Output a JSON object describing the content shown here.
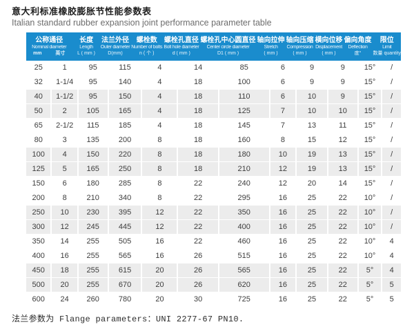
{
  "page": {
    "title_cn": "意大利标准橡胶膨胀节性能参数表",
    "title_en": "Italian standard rubber expansion joint performance parameter table",
    "footer": "法兰参数为 Flange parameters：UNI 2277-67 PN10."
  },
  "colors": {
    "header_bg": "#1a8ccd",
    "header_text": "#ffffff",
    "row_alt_bg": "#ececec",
    "body_text": "#3c3c3c"
  },
  "table": {
    "columns": [
      {
        "cn": "公称通径",
        "en": "Nominal diameter",
        "span": 2,
        "sub_parts": [
          "mm",
          "英寸"
        ]
      },
      {
        "cn": "长度",
        "en": "Length",
        "sub": "L ( mm )"
      },
      {
        "cn": "法兰外径",
        "en": "Outer diameter",
        "sub": "D(mm)"
      },
      {
        "cn": "螺栓数",
        "en": "Number of bolts",
        "sub": "n ( 个 )"
      },
      {
        "cn": "螺栓孔直径",
        "en": "Bolt hole diameter",
        "sub": "d ( mm )"
      },
      {
        "cn": "螺栓孔中心圆直径",
        "en": "Center circle diameter",
        "sub": "D1 ( mm )"
      },
      {
        "cn": "轴向拉伸",
        "en": "Stretch",
        "sub": "( mm )"
      },
      {
        "cn": "轴向压缩",
        "en": "Compression",
        "sub": "( mm )"
      },
      {
        "cn": "横向位移",
        "en": "Displacement",
        "sub": "( mm )"
      },
      {
        "cn": "偏向角度",
        "en": "Deflection",
        "sub": "度°"
      },
      {
        "cn": "限位",
        "en": "Limit",
        "sub": "数量 quantity"
      }
    ],
    "rows": [
      [
        "25",
        "1",
        "95",
        "115",
        "4",
        "14",
        "85",
        "6",
        "9",
        "9",
        "15°",
        "/"
      ],
      [
        "32",
        "1-1/4",
        "95",
        "140",
        "4",
        "18",
        "100",
        "6",
        "9",
        "9",
        "15°",
        "/"
      ],
      [
        "40",
        "1-1/2",
        "95",
        "150",
        "4",
        "18",
        "110",
        "6",
        "10",
        "9",
        "15°",
        "/"
      ],
      [
        "50",
        "2",
        "105",
        "165",
        "4",
        "18",
        "125",
        "7",
        "10",
        "10",
        "15°",
        "/"
      ],
      [
        "65",
        "2-1/2",
        "115",
        "185",
        "4",
        "18",
        "145",
        "7",
        "13",
        "11",
        "15°",
        "/"
      ],
      [
        "80",
        "3",
        "135",
        "200",
        "8",
        "18",
        "160",
        "8",
        "15",
        "12",
        "15°",
        "/"
      ],
      [
        "100",
        "4",
        "150",
        "220",
        "8",
        "18",
        "180",
        "10",
        "19",
        "13",
        "15°",
        "/"
      ],
      [
        "125",
        "5",
        "165",
        "250",
        "8",
        "18",
        "210",
        "12",
        "19",
        "13",
        "15°",
        "/"
      ],
      [
        "150",
        "6",
        "180",
        "285",
        "8",
        "22",
        "240",
        "12",
        "20",
        "14",
        "15°",
        "/"
      ],
      [
        "200",
        "8",
        "210",
        "340",
        "8",
        "22",
        "295",
        "16",
        "25",
        "22",
        "10°",
        "/"
      ],
      [
        "250",
        "10",
        "230",
        "395",
        "12",
        "22",
        "350",
        "16",
        "25",
        "22",
        "10°",
        "/"
      ],
      [
        "300",
        "12",
        "245",
        "445",
        "12",
        "22",
        "400",
        "16",
        "25",
        "22",
        "10°",
        "/"
      ],
      [
        "350",
        "14",
        "255",
        "505",
        "16",
        "22",
        "460",
        "16",
        "25",
        "22",
        "10°",
        "4"
      ],
      [
        "400",
        "16",
        "255",
        "565",
        "16",
        "26",
        "515",
        "16",
        "25",
        "22",
        "10°",
        "4"
      ],
      [
        "450",
        "18",
        "255",
        "615",
        "20",
        "26",
        "565",
        "16",
        "25",
        "22",
        "5°",
        "4"
      ],
      [
        "500",
        "20",
        "255",
        "670",
        "20",
        "26",
        "620",
        "16",
        "25",
        "22",
        "5°",
        "5"
      ],
      [
        "600",
        "24",
        "260",
        "780",
        "20",
        "30",
        "725",
        "16",
        "25",
        "22",
        "5°",
        "5"
      ]
    ]
  }
}
